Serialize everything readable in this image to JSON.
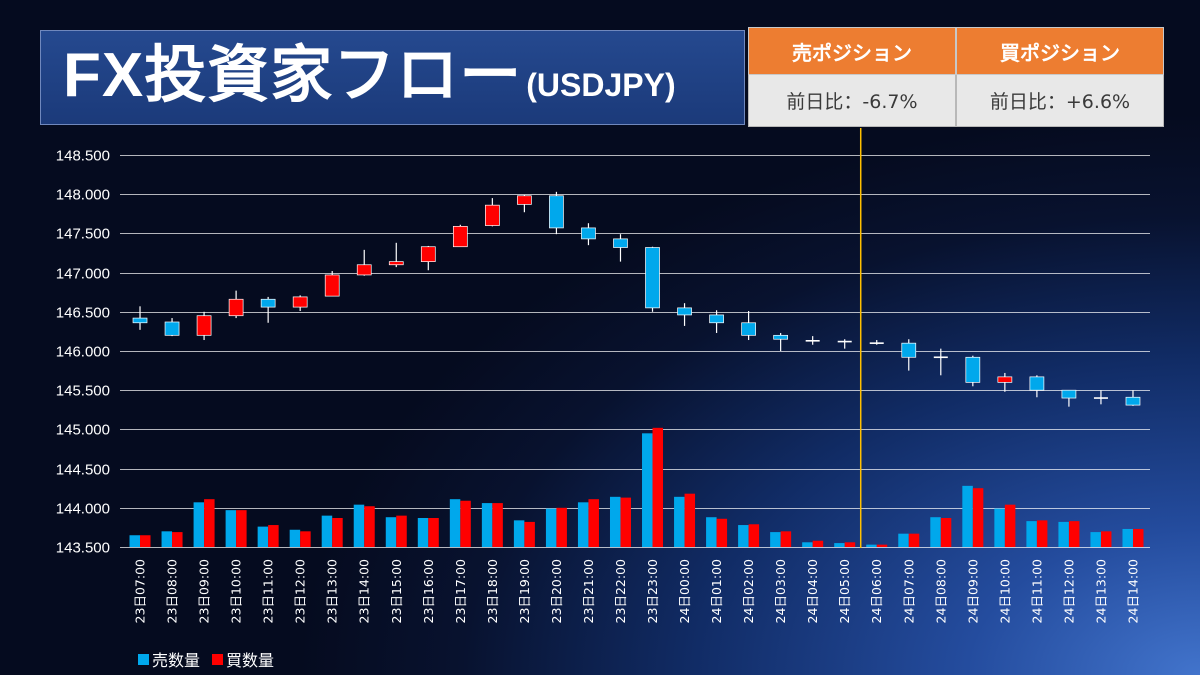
{
  "title": {
    "main": "FX投資家フロー",
    "sub": "(USDJPY)"
  },
  "summary_table": {
    "header_color": "#ed7d31",
    "columns": [
      {
        "header": "売ポジション",
        "value": "前日比：-6.7%"
      },
      {
        "header": "買ポジション",
        "value": "前日比：+6.6%"
      }
    ]
  },
  "chart_data": {
    "type": "candlestick",
    "categories": [
      "23日07:00",
      "23日08:00",
      "23日09:00",
      "23日10:00",
      "23日11:00",
      "23日12:00",
      "23日13:00",
      "23日14:00",
      "23日15:00",
      "23日16:00",
      "23日17:00",
      "23日18:00",
      "23日19:00",
      "23日20:00",
      "23日21:00",
      "23日22:00",
      "23日23:00",
      "24日00:00",
      "24日01:00",
      "24日02:00",
      "24日03:00",
      "24日04:00",
      "24日05:00",
      "24日06:00",
      "24日07:00",
      "24日08:00",
      "24日09:00",
      "24日10:00",
      "24日11:00",
      "24日12:00",
      "24日13:00",
      "24日14:00"
    ],
    "ylim": [
      143.5,
      148.5
    ],
    "yticks": [
      "148.500",
      "148.000",
      "147.500",
      "147.000",
      "146.500",
      "146.000",
      "145.500",
      "145.000",
      "144.500",
      "144.000",
      "143.500"
    ],
    "grid": true,
    "up_color": "#ff0000",
    "down_color": "#00a8ec",
    "doji_color": "#ffffff",
    "wick_color": "#ffffff",
    "ohlc": [
      {
        "o": 146.42,
        "h": 146.57,
        "l": 146.27,
        "c": 146.36
      },
      {
        "o": 146.37,
        "h": 146.42,
        "l": 146.19,
        "c": 146.2
      },
      {
        "o": 146.2,
        "h": 146.5,
        "l": 146.14,
        "c": 146.45
      },
      {
        "o": 146.45,
        "h": 146.77,
        "l": 146.42,
        "c": 146.66
      },
      {
        "o": 146.66,
        "h": 146.69,
        "l": 146.36,
        "c": 146.56
      },
      {
        "o": 146.56,
        "h": 146.71,
        "l": 146.51,
        "c": 146.69
      },
      {
        "o": 146.7,
        "h": 147.02,
        "l": 146.7,
        "c": 146.97
      },
      {
        "o": 146.97,
        "h": 147.29,
        "l": 146.96,
        "c": 147.1
      },
      {
        "o": 147.1,
        "h": 147.38,
        "l": 147.07,
        "c": 147.14
      },
      {
        "o": 147.14,
        "h": 147.34,
        "l": 147.03,
        "c": 147.33
      },
      {
        "o": 147.33,
        "h": 147.61,
        "l": 147.33,
        "c": 147.59
      },
      {
        "o": 147.6,
        "h": 147.95,
        "l": 147.59,
        "c": 147.86
      },
      {
        "o": 147.87,
        "h": 147.99,
        "l": 147.77,
        "c": 147.98
      },
      {
        "o": 147.98,
        "h": 148.03,
        "l": 147.49,
        "c": 147.57
      },
      {
        "o": 147.57,
        "h": 147.63,
        "l": 147.35,
        "c": 147.43
      },
      {
        "o": 147.43,
        "h": 147.49,
        "l": 147.14,
        "c": 147.32
      },
      {
        "o": 147.32,
        "h": 147.33,
        "l": 146.5,
        "c": 146.55
      },
      {
        "o": 146.55,
        "h": 146.61,
        "l": 146.32,
        "c": 146.46
      },
      {
        "o": 146.46,
        "h": 146.52,
        "l": 146.23,
        "c": 146.36
      },
      {
        "o": 146.36,
        "h": 146.51,
        "l": 146.14,
        "c": 146.2
      },
      {
        "o": 146.2,
        "h": 146.23,
        "l": 146.0,
        "c": 146.15
      },
      {
        "o": 146.13,
        "h": 146.19,
        "l": 146.08,
        "c": 146.13
      },
      {
        "o": 146.12,
        "h": 146.15,
        "l": 146.03,
        "c": 146.12
      },
      {
        "o": 146.1,
        "h": 146.14,
        "l": 146.08,
        "c": 146.1
      },
      {
        "o": 146.1,
        "h": 146.15,
        "l": 145.75,
        "c": 145.92
      },
      {
        "o": 145.92,
        "h": 146.03,
        "l": 145.69,
        "c": 145.92
      },
      {
        "o": 145.92,
        "h": 145.94,
        "l": 145.55,
        "c": 145.6
      },
      {
        "o": 145.6,
        "h": 145.72,
        "l": 145.48,
        "c": 145.67
      },
      {
        "o": 145.67,
        "h": 145.69,
        "l": 145.41,
        "c": 145.5
      },
      {
        "o": 145.5,
        "h": 145.5,
        "l": 145.29,
        "c": 145.4
      },
      {
        "o": 145.4,
        "h": 145.5,
        "l": 145.32,
        "c": 145.4
      },
      {
        "o": 145.41,
        "h": 145.5,
        "l": 145.3,
        "c": 145.31
      }
    ],
    "series": [
      {
        "name": "売数量",
        "color": "#00a8ec",
        "values": [
          143.65,
          143.7,
          144.07,
          143.97,
          143.76,
          143.72,
          143.9,
          144.04,
          143.88,
          143.87,
          144.11,
          144.06,
          143.84,
          143.99,
          144.07,
          144.14,
          144.95,
          144.14,
          143.88,
          143.78,
          143.69,
          143.56,
          143.55,
          143.53,
          143.67,
          143.88,
          144.28,
          143.99,
          143.83,
          143.82,
          143.69,
          143.73
        ]
      },
      {
        "name": "買数量",
        "color": "#ff0000",
        "values": [
          143.65,
          143.69,
          144.11,
          143.97,
          143.78,
          143.7,
          143.87,
          144.02,
          143.9,
          143.87,
          144.09,
          144.06,
          143.82,
          144.0,
          144.11,
          144.13,
          145.02,
          144.18,
          143.86,
          143.79,
          143.7,
          143.58,
          143.56,
          143.53,
          143.67,
          143.87,
          144.25,
          144.04,
          143.84,
          143.83,
          143.7,
          143.73
        ]
      }
    ],
    "legend": "bottom-left",
    "divider": {
      "after_category": "24日05:00",
      "color": "#ffc000"
    }
  }
}
